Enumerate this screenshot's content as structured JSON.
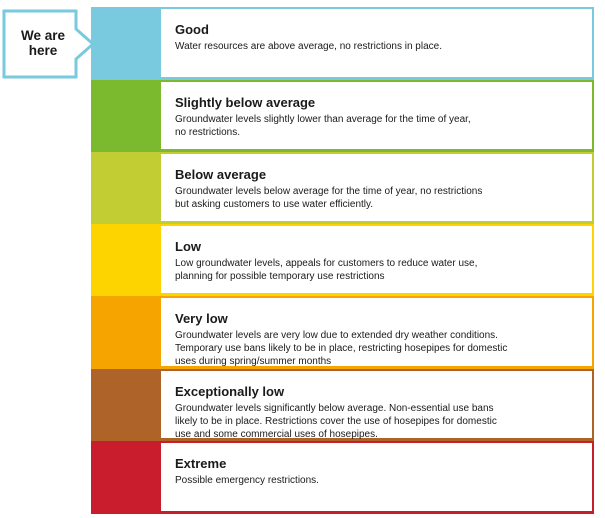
{
  "marker": {
    "label_line1": "We are",
    "label_line2": "here",
    "color": "#79c9df"
  },
  "levels": [
    {
      "title": "Good",
      "description": "Water resources are above average, no restrictions in place.",
      "color": "#79c9df",
      "current": true
    },
    {
      "title": "Slightly below average",
      "description": "Groundwater levels slightly lower than average for the time of year,\nno restrictions.",
      "color": "#7bba2f",
      "current": false
    },
    {
      "title": "Below average",
      "description": "Groundwater levels below average for the time of year, no restrictions\nbut asking customers to use water efficiently.",
      "color": "#c2cd33",
      "current": false
    },
    {
      "title": "Low",
      "description": "Low groundwater levels, appeals for customers to reduce water use,\nplanning for possible temporary use restrictions",
      "color": "#fed400",
      "current": false
    },
    {
      "title": "Very low",
      "description": "Groundwater levels are very low due to extended dry weather conditions.\nTemporary use bans likely to be in place, restricting hosepipes for domestic\nuses during spring/summer months",
      "color": "#f5a400",
      "current": false
    },
    {
      "title": "Exceptionally low",
      "description": "Groundwater levels significantly below average. Non-essential use bans\nlikely to be in place. Restrictions cover the use of hosepipes for domestic\nuse and some commercial uses of hosepipes.",
      "color": "#ae6429",
      "current": false
    },
    {
      "title": "Extreme",
      "description": "Possible emergency restrictions.",
      "color": "#c91c2c",
      "current": false
    }
  ]
}
